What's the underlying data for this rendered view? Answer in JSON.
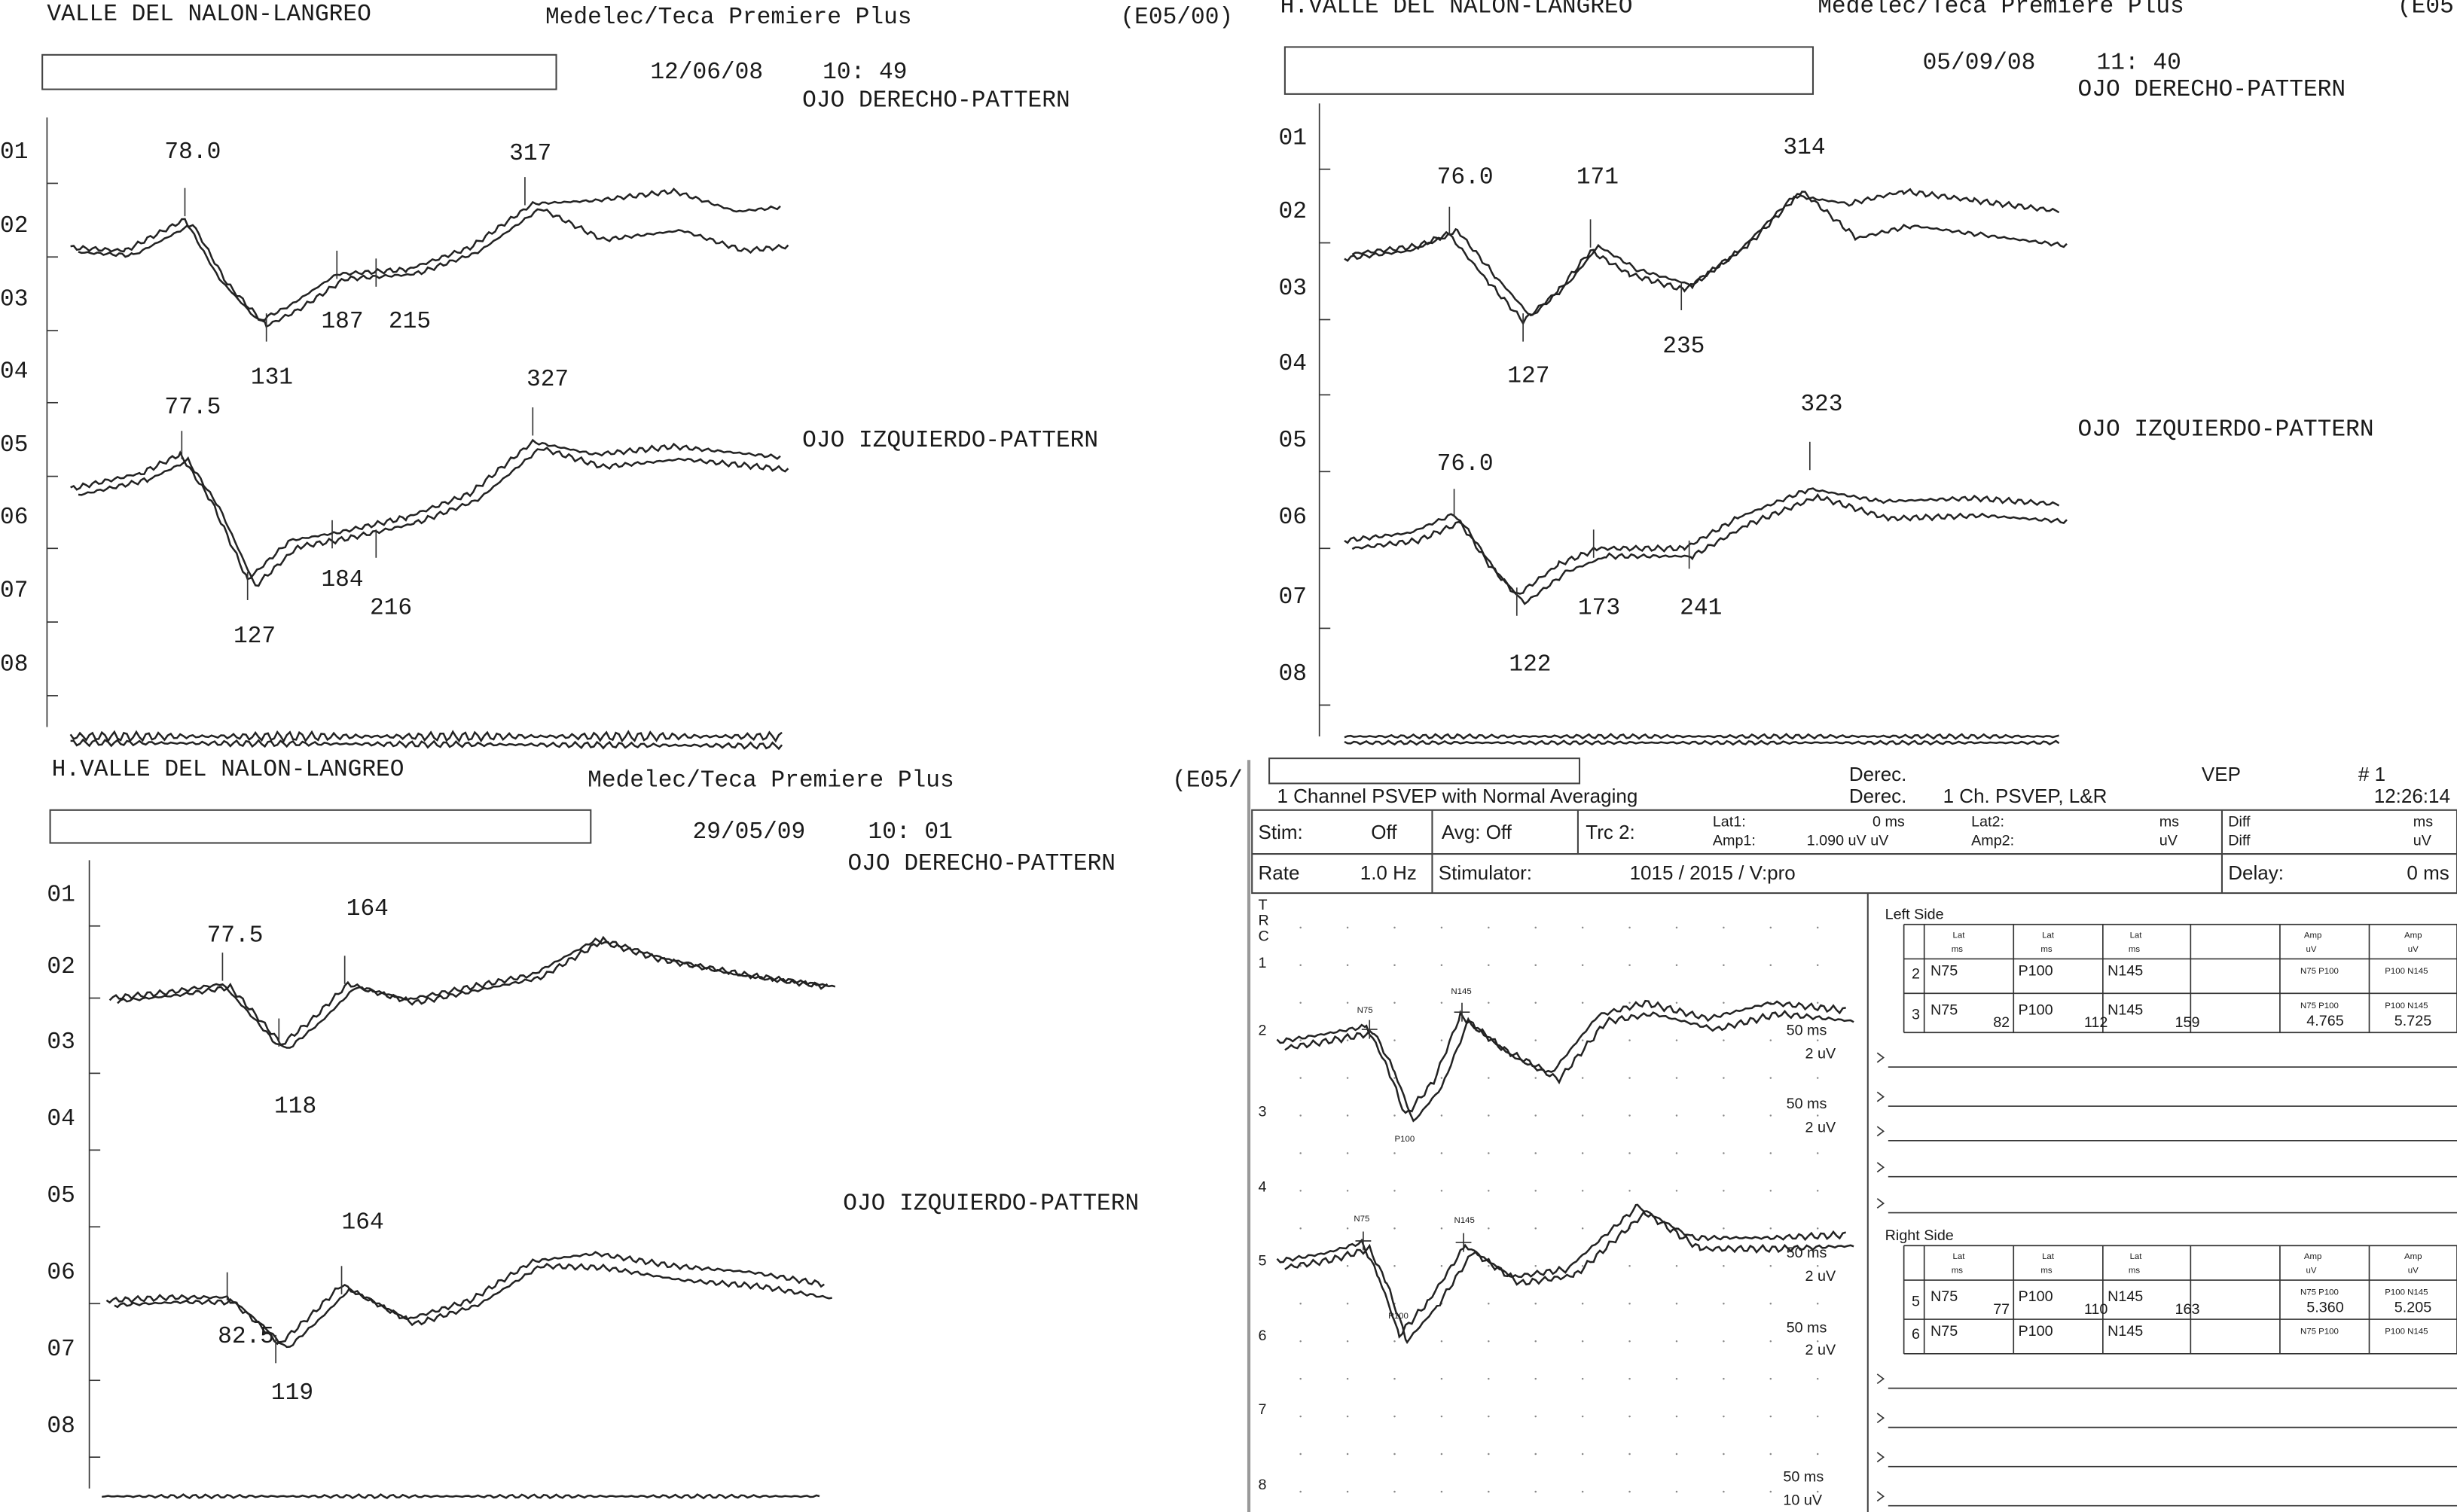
{
  "printouts": [
    {
      "hospital": "VALLE DEL NALON-LANGREO",
      "device": "Medelec/Teca Premiere Plus",
      "code": "(E05/00)",
      "date": "12/06/08",
      "time": "10: 49",
      "right_eye": "OJO DERECHO-PATTERN",
      "left_eye": "OJO IZQUIERDO-PATTERN",
      "channels": [
        "01",
        "02",
        "03",
        "04",
        "05",
        "06",
        "07",
        "08"
      ],
      "peaks": [
        "78.0",
        "317",
        "187",
        "215",
        "131",
        "327",
        "77.5",
        "184",
        "216",
        "127"
      ]
    },
    {
      "hospital": "H.VALLE DEL NALON-LANGREO",
      "device": "Medelec/Teca Premiere Plus",
      "code": "(E05",
      "date": "05/09/08",
      "time": "11: 40",
      "right_eye": "OJO DERECHO-PATTERN",
      "left_eye": "OJO IZQUIERDO-PATTERN",
      "channels": [
        "01",
        "02",
        "03",
        "04",
        "05",
        "06",
        "07",
        "08"
      ],
      "peaks": [
        "76.0",
        "171",
        "314",
        "235",
        "127",
        "323",
        "76.0",
        "173",
        "241",
        "122"
      ]
    },
    {
      "hospital": "H.VALLE DEL NALON-LANGREO",
      "device": "Medelec/Teca Premiere Plus",
      "code": "(E05/",
      "date": "29/05/09",
      "time": "10: 01",
      "right_eye": "OJO DERECHO-PATTERN",
      "left_eye": "OJO IZQUIERDO-PATTERN",
      "channels": [
        "01",
        "02",
        "03",
        "04",
        "05",
        "06",
        "07",
        "08"
      ],
      "peaks": [
        "77.5",
        "164",
        "118",
        "164",
        "82.5",
        "119"
      ]
    }
  ],
  "report": {
    "title": "1 Channel PSVEP with Normal Averaging",
    "side1": "Derec.",
    "side2": "Derec.",
    "protocol": "1 Ch. PSVEP, L&R",
    "mode": "VEP",
    "number": "# 1",
    "clock": "12:26:14",
    "settings": [
      "Stim:",
      "Off",
      "Avg: Off",
      "Trc 2:",
      "Lat1:",
      "0 ms",
      "Amp1:",
      "1.090 uV uV",
      "Lat2:",
      "ms",
      "Amp2:",
      "uV",
      "Diff",
      "Diff",
      "ms",
      "uV",
      "Rate",
      "1.0 Hz",
      "Stimulator:",
      "1015 / 2015 / V:pro",
      "Delay:",
      "0 ms"
    ],
    "trace_axis": [
      "T",
      "R",
      "C",
      "1",
      "2",
      "3",
      "4",
      "5",
      "6",
      "7",
      "8"
    ],
    "scales": [
      "50 ms",
      "2 uV",
      "50 ms",
      "2 uV",
      "50 ms",
      "2 uV",
      "50 ms",
      "2 uV",
      "50 ms",
      "10 uV"
    ],
    "markers": [
      "N75",
      "N145",
      "P100",
      "N75",
      "N145",
      "P100"
    ],
    "left_side": {
      "title": "Left Side",
      "header": [
        "Lat",
        "ms",
        "Lat",
        "ms",
        "Lat",
        "ms",
        "Amp",
        "uV",
        "Amp",
        "uV"
      ],
      "rows": [
        [
          "2",
          "N75",
          "P100",
          "N145",
          "N75 P100",
          "P100 N145"
        ],
        [
          "3",
          "N75",
          "82",
          "P100",
          "112",
          "N145",
          "159",
          "N75 P100",
          "4.765",
          "P100 N145",
          "5.725"
        ]
      ]
    },
    "right_side": {
      "title": "Right Side",
      "header": [
        "Lat",
        "ms",
        "Lat",
        "ms",
        "Lat",
        "ms",
        "Amp",
        "uV",
        "Amp",
        "uV"
      ],
      "rows": [
        [
          "5",
          "N75",
          "77",
          "P100",
          "110",
          "N145",
          "163",
          "N75 P100",
          "5.360",
          "P100 N145",
          "5.205"
        ],
        [
          "6",
          "N75",
          "P100",
          "N145",
          "N75 P100",
          "P100 N145"
        ]
      ]
    }
  }
}
